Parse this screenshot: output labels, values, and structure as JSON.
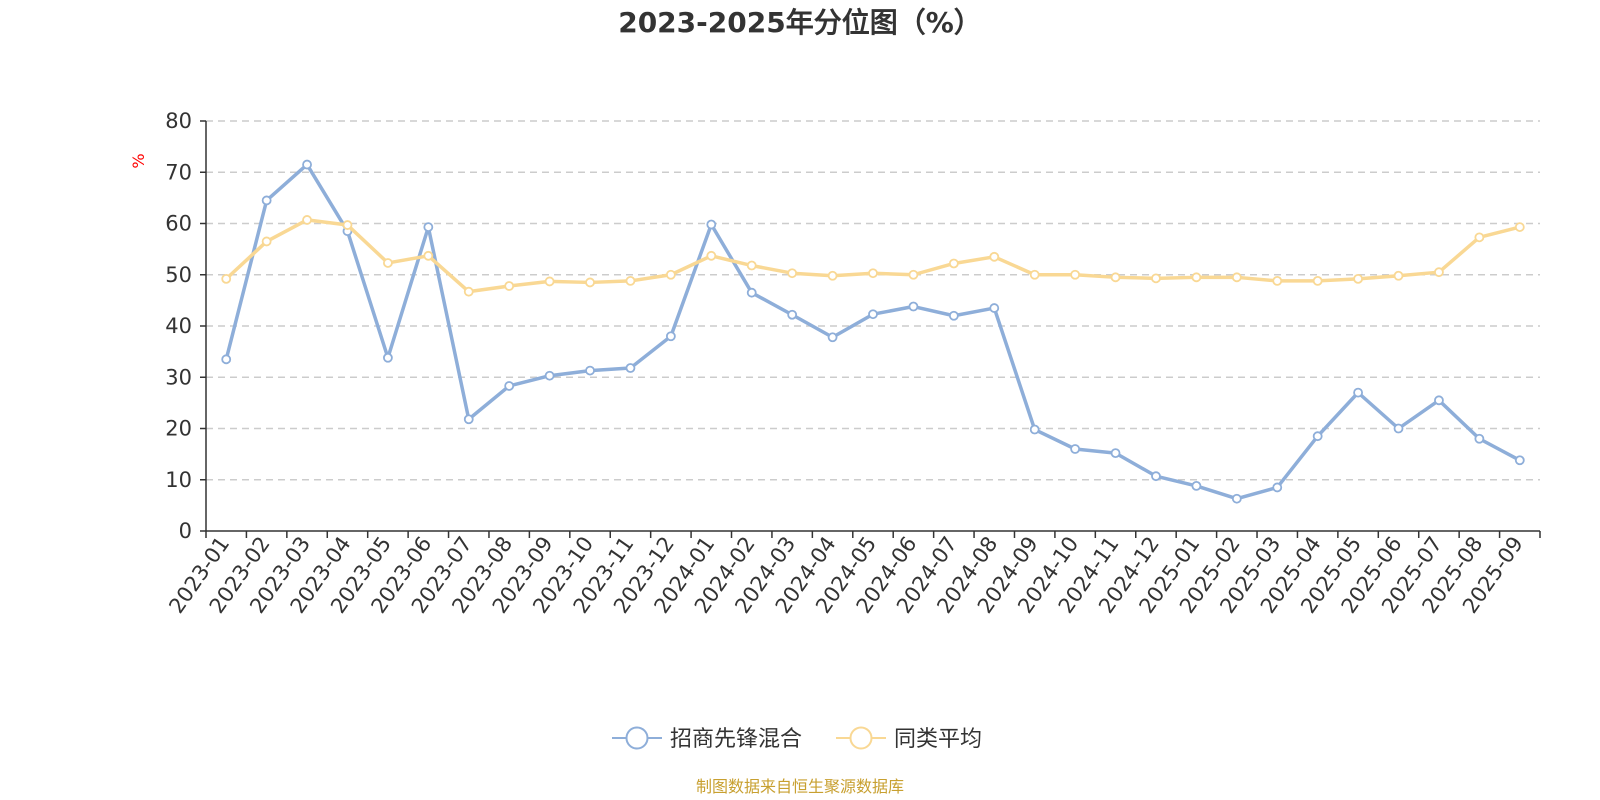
{
  "chart_data": {
    "type": "line",
    "title": "2023-2025年分位图（%）",
    "ylabel": "%",
    "ylim": [
      0,
      80
    ],
    "yticks": [
      0,
      10,
      20,
      30,
      40,
      50,
      60,
      70,
      80
    ],
    "grid": true,
    "legend_position": "bottom",
    "categories": [
      "2023-01",
      "2023-02",
      "2023-03",
      "2023-04",
      "2023-05",
      "2023-06",
      "2023-07",
      "2023-08",
      "2023-09",
      "2023-10",
      "2023-11",
      "2023-12",
      "2024-01",
      "2024-02",
      "2024-03",
      "2024-04",
      "2024-05",
      "2024-06",
      "2024-07",
      "2024-08",
      "2024-09",
      "2024-10",
      "2024-11",
      "2024-12",
      "2025-01",
      "2025-02",
      "2025-03",
      "2025-04",
      "2025-05",
      "2025-06",
      "2025-07",
      "2025-08",
      "2025-09"
    ],
    "series": [
      {
        "name": "招商先锋混合",
        "color": "#8eaed9",
        "values": [
          33.5,
          64.5,
          71.5,
          58.5,
          33.8,
          59.3,
          21.8,
          28.3,
          30.3,
          31.3,
          31.8,
          38.0,
          59.8,
          46.5,
          42.2,
          37.8,
          42.3,
          43.8,
          42.0,
          43.5,
          19.8,
          16.0,
          15.2,
          10.7,
          8.8,
          6.3,
          8.5,
          18.5,
          27.0,
          20.0,
          25.5,
          18.0,
          13.8
        ]
      },
      {
        "name": "同类平均",
        "color": "#f9d894",
        "values": [
          49.2,
          56.5,
          60.7,
          59.7,
          52.3,
          53.7,
          46.7,
          47.8,
          48.7,
          48.5,
          48.8,
          50.0,
          53.7,
          51.8,
          50.3,
          49.8,
          50.3,
          50.0,
          52.2,
          53.5,
          50.0,
          50.0,
          49.5,
          49.3,
          49.5,
          49.5,
          48.8,
          48.8,
          49.2,
          49.8,
          50.5,
          57.3,
          59.3
        ]
      }
    ]
  },
  "source_note": "制图数据来自恒生聚源数据库",
  "colors": {
    "unit_label": "#ff0000",
    "source_note": "#c8a030",
    "axis": "#333333",
    "grid": "#cccccc"
  }
}
